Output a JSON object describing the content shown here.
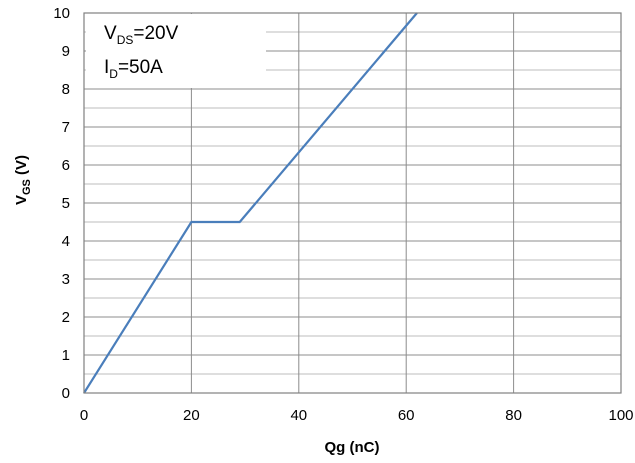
{
  "chart_data": {
    "type": "line",
    "xlabel": "Qg (nC)",
    "ylabel": {
      "main": "V",
      "sub": "GS",
      "unit": " (V)"
    },
    "xlim": [
      0,
      100
    ],
    "ylim": [
      0,
      10
    ],
    "x_ticks": [
      "0",
      "20",
      "40",
      "60",
      "80",
      "100"
    ],
    "y_ticks": [
      "0",
      "1",
      "2",
      "3",
      "4",
      "5",
      "6",
      "7",
      "8",
      "9",
      "10"
    ],
    "grid": true,
    "series": [
      {
        "color": "#4a7ebb",
        "x": [
          0,
          20,
          29,
          62
        ],
        "y": [
          0,
          4.5,
          4.5,
          10
        ]
      }
    ],
    "annotations": [
      {
        "main": "V",
        "sub": "DS",
        "rest": "=20V"
      },
      {
        "main": "I",
        "sub": "D",
        "rest": "=50A"
      }
    ]
  }
}
